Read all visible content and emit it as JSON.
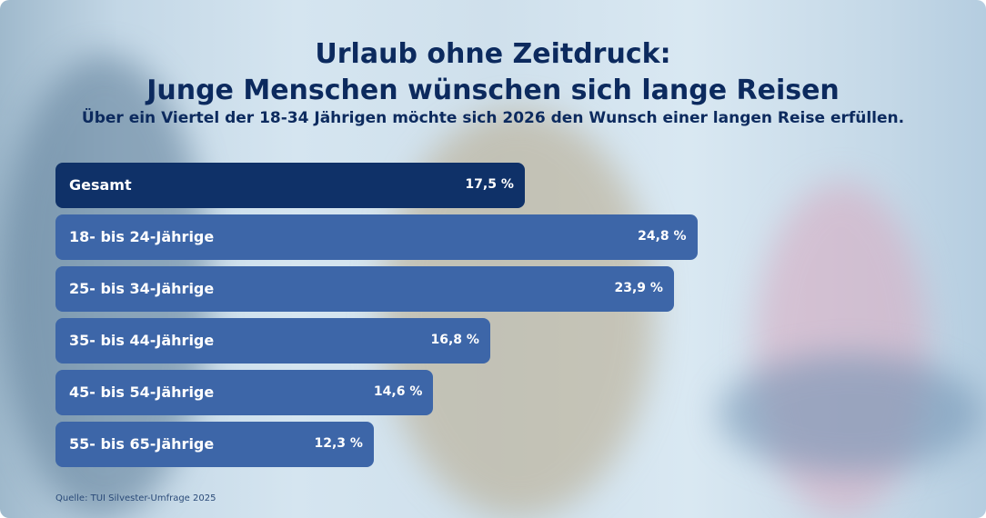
{
  "title_line1": "Urlaub ohne Zeitdruck:",
  "title_line2": "Junge Menschen wünschen sich lange Reisen",
  "subtitle": "Über ein Viertel der 18-34 Jährigen möchte sich 2026 den Wunsch einer langen Reise erfüllen.",
  "source": "Quelle: TUI Silvester-Umfrage 2025",
  "colors": {
    "total_bar": "#0f3168",
    "group_bar": "#3d66a8",
    "title": "#0c2a5e"
  },
  "chart_data": {
    "type": "bar",
    "orientation": "horizontal",
    "categories": [
      "Gesamt",
      "18- bis 24-Jährige",
      "25- bis 34-Jährige",
      "35- bis 44-Jährige",
      "45- bis 54-Jährige",
      "55- bis 65-Jährige"
    ],
    "values": [
      17.5,
      24.8,
      23.9,
      16.8,
      14.6,
      12.3
    ],
    "value_labels": [
      "17,5 %",
      "24,8 %",
      "23,9 %",
      "16,8 %",
      "14,6 %",
      "12,3 %"
    ],
    "unit": "%",
    "grid": false
  }
}
